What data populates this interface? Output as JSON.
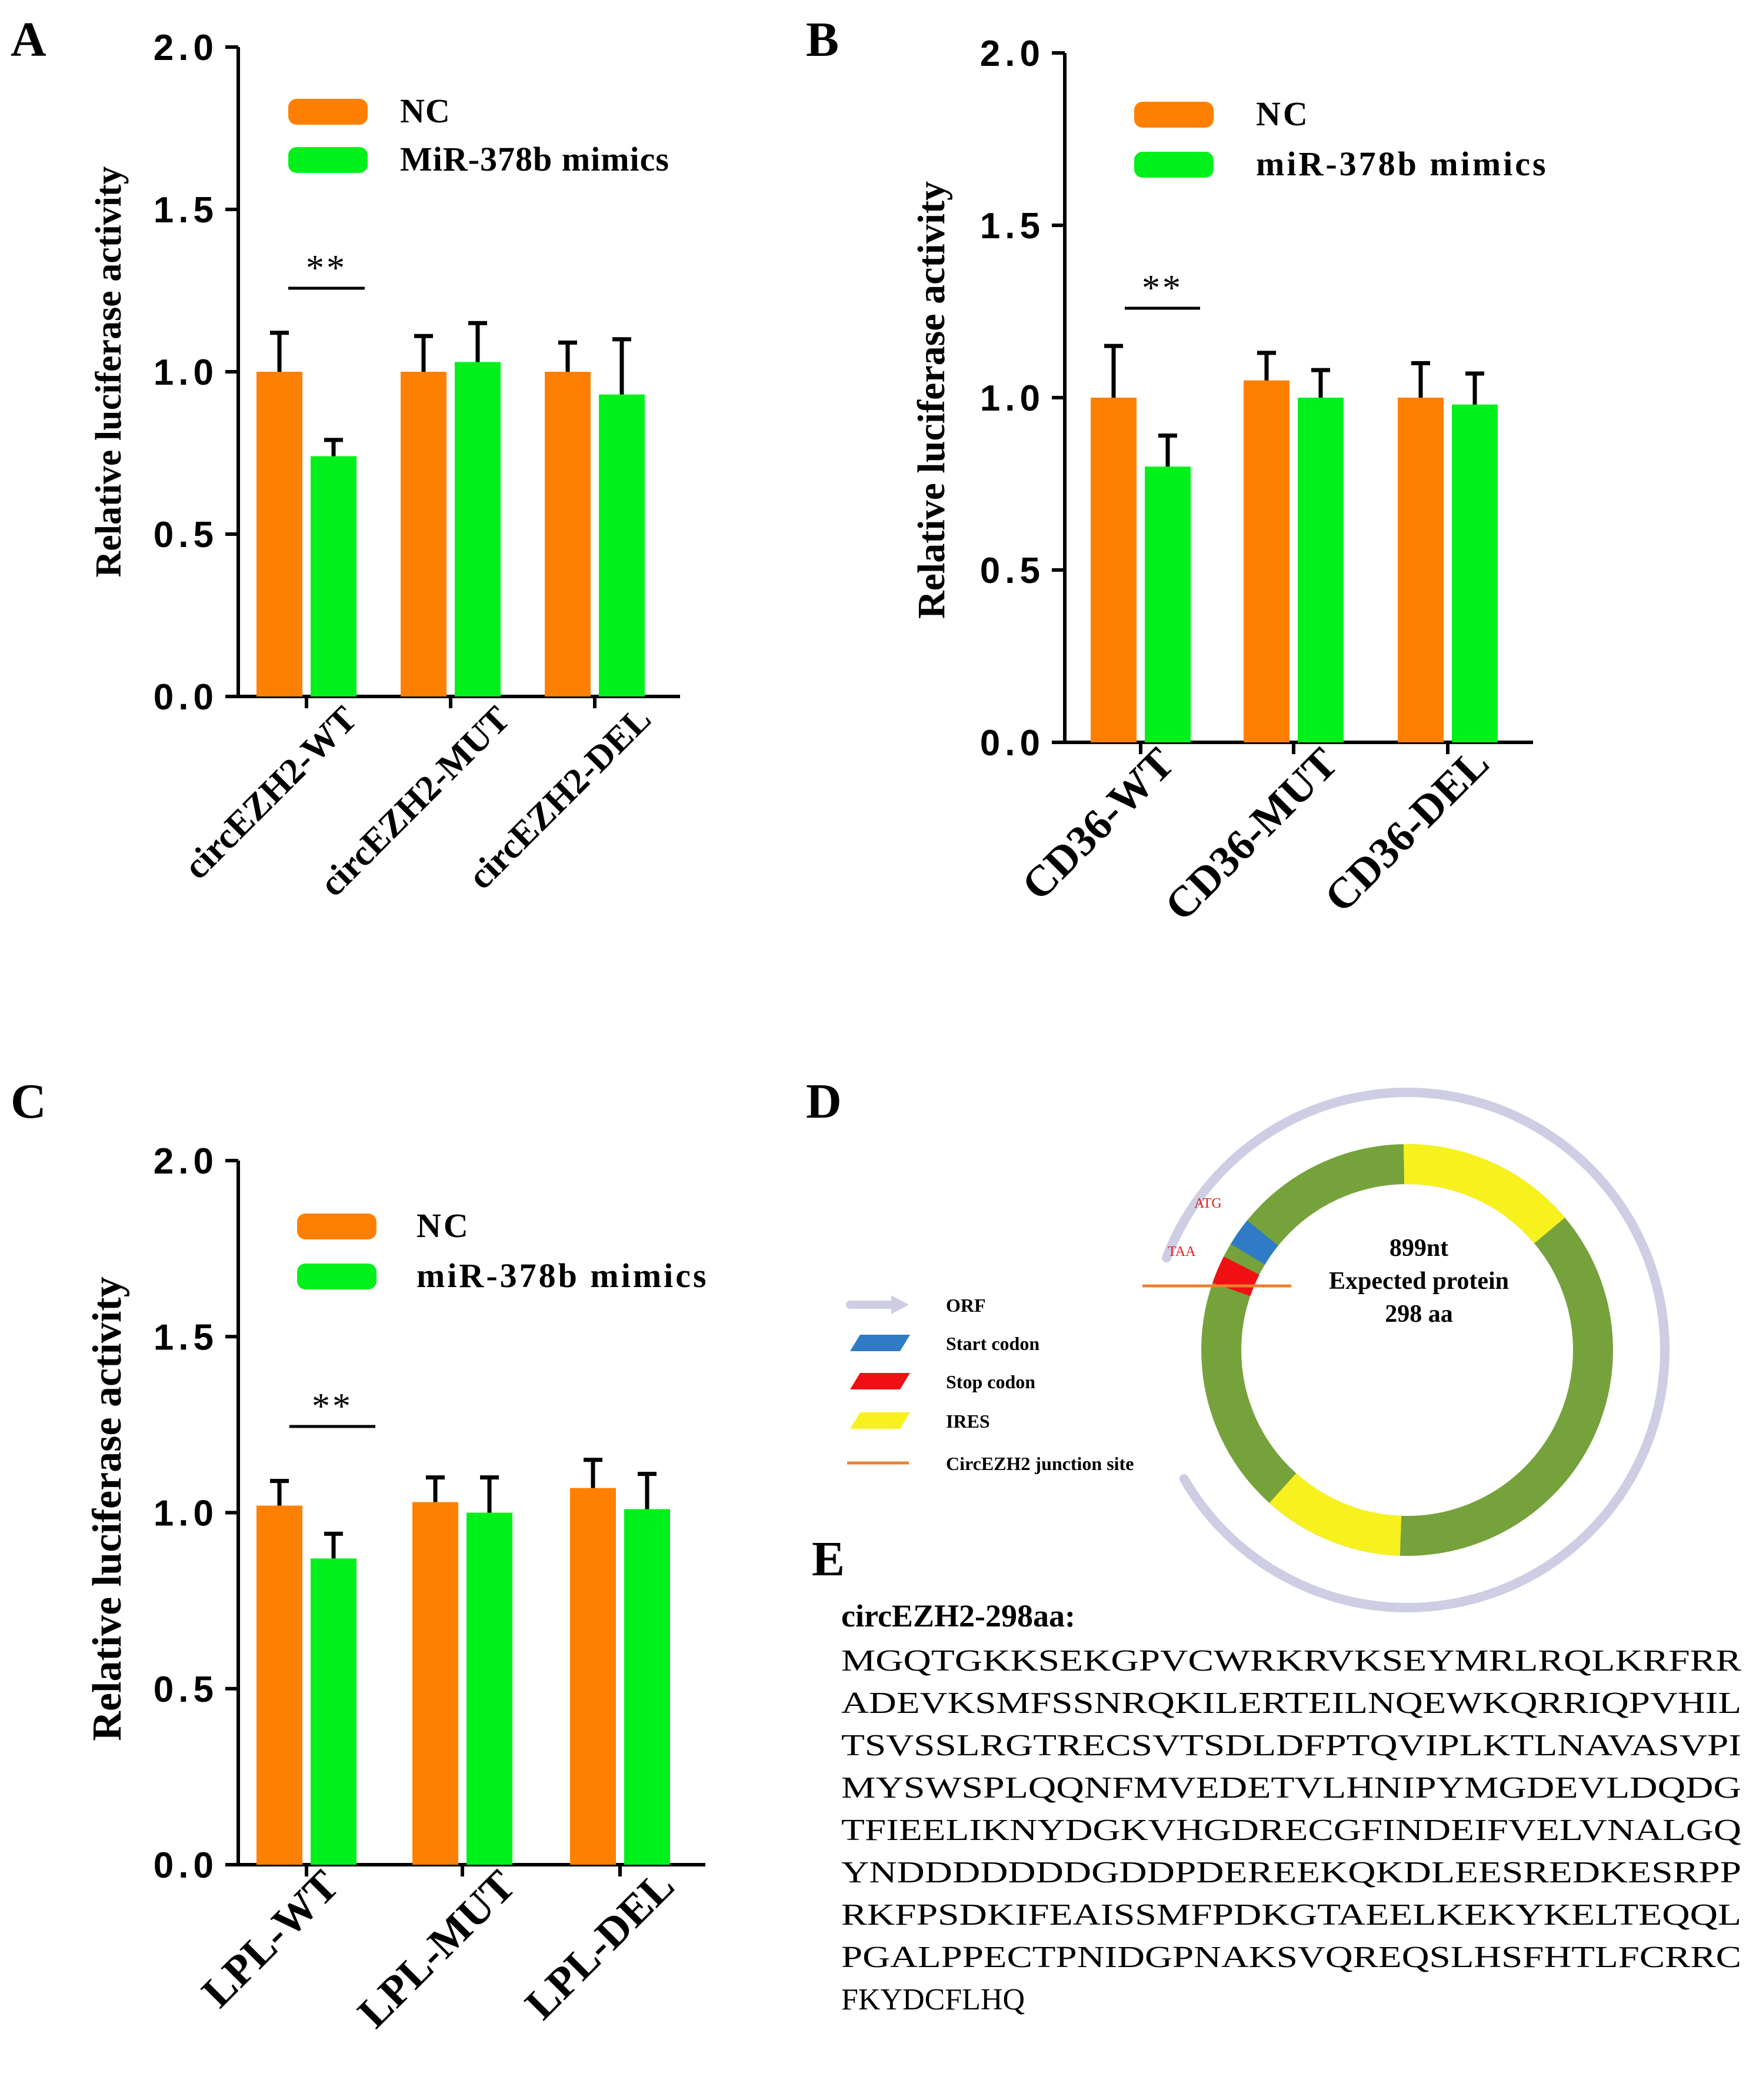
{
  "colors": {
    "nc": "#FF8000",
    "mimic": "#00F01C",
    "axis": "#000000",
    "ring": "#76A23C",
    "ires": "#F7F21D",
    "orf": "#CDCDE3",
    "start": "#2F7BC6",
    "stop": "#F01014",
    "junction": "#F07F2D",
    "codon_label": "#E81A1A"
  },
  "chart_data": [
    {
      "panel": "A",
      "type": "bar",
      "ylabel": "Relative luciferase activity",
      "ylim": [
        0,
        2.0
      ],
      "yticks": [
        "0.0",
        "0.5",
        "1.0",
        "1.5",
        "2.0"
      ],
      "categories": [
        "circEZH2-WT",
        "circEZH2-MUT",
        "circEZH2-DEL"
      ],
      "series": [
        {
          "name": "NC",
          "values": [
            1.0,
            1.0,
            1.0
          ],
          "errors": [
            0.12,
            0.11,
            0.09
          ]
        },
        {
          "name": "MiR-378b mimics",
          "values": [
            0.74,
            1.03,
            0.93
          ],
          "errors": [
            0.05,
            0.12,
            0.17
          ]
        }
      ],
      "significance": "**",
      "grid": false
    },
    {
      "panel": "B",
      "type": "bar",
      "ylabel": "Relative luciferase activity",
      "ylim": [
        0,
        2.0
      ],
      "yticks": [
        "0.0",
        "0.5",
        "1.0",
        "1.5",
        "2.0"
      ],
      "categories": [
        "CD36-WT",
        "CD36-MUT",
        "CD36-DEL"
      ],
      "series": [
        {
          "name": "NC",
          "values": [
            1.0,
            1.05,
            1.0
          ],
          "errors": [
            0.15,
            0.08,
            0.1
          ]
        },
        {
          "name": "miR-378b mimics",
          "values": [
            0.8,
            1.0,
            0.98
          ],
          "errors": [
            0.09,
            0.08,
            0.09
          ]
        }
      ],
      "significance": "**",
      "grid": false
    },
    {
      "panel": "C",
      "type": "bar",
      "ylabel": "Relative luciferase activity",
      "ylim": [
        0,
        2.0
      ],
      "yticks": [
        "0.0",
        "0.5",
        "1.0",
        "1.5",
        "2.0"
      ],
      "categories": [
        "LPL-WT",
        "LPL-MUT",
        "LPL-DEL"
      ],
      "series": [
        {
          "name": "NC",
          "values": [
            1.02,
            1.03,
            1.07
          ],
          "errors": [
            0.07,
            0.07,
            0.08
          ]
        },
        {
          "name": "miR-378b mimics",
          "values": [
            0.87,
            1.0,
            1.01
          ],
          "errors": [
            0.07,
            0.1,
            0.1
          ]
        }
      ],
      "significance": "**",
      "grid": false
    }
  ],
  "panel_d": {
    "label": "D",
    "center_lines": [
      "899nt",
      "Expected protein",
      "298 aa"
    ],
    "codon_labels": {
      "start": "ATG",
      "stop": "TAA"
    },
    "legend": [
      {
        "key": "orf",
        "label": "ORF"
      },
      {
        "key": "start",
        "label": "Start codon"
      },
      {
        "key": "stop",
        "label": "Stop codon"
      },
      {
        "key": "ires",
        "label": "IRES"
      },
      {
        "key": "junction",
        "label": "CircEZH2 junction site"
      }
    ]
  },
  "panel_e": {
    "label": "E",
    "title": "circEZH2-298aa:",
    "sequence_lines": [
      "MGQTGKKSEKGPVCWRKRVKSEYMRLRQLKRFRR",
      "ADEVKSMFSSNRQKILERTEILNQEWKQRRIQPVHIL",
      "TSVSSLRGTRECSVTSDLDFPTQVIPLKTLNAVASVPI",
      "MYSWSPLQQNFMVEDETVLHNIPYMGDEVLDQDG",
      "TFIEELIKNYDGKVHGDRECGFINDEIFVELVNALGQ",
      "YNDDDDDDDGDDPDEREEKQKDLEESREDKESRPP",
      "RKFPSDKIFEAISSMFPDKGTAEELKEKYKELTEQQL",
      "PGALPPECTPNIDGPNAKSVQREQSLHSFHTLFCRRC",
      "FKYDCFLHQ"
    ]
  }
}
